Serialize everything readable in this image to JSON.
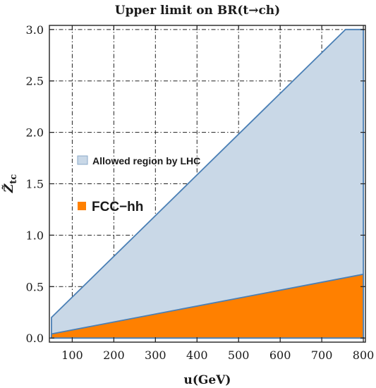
{
  "chart_data": {
    "type": "area",
    "title": "Upper limit on BR(t→ch)",
    "xlabel": "u(GeV)",
    "ylabel_main": "Z̃",
    "ylabel_sub": "tc",
    "xlim": [
      45,
      805
    ],
    "ylim": [
      -0.04,
      3.04
    ],
    "x_ticks": [
      "100",
      "200",
      "300",
      "400",
      "500",
      "600",
      "700",
      "800"
    ],
    "x_tick_values": [
      100,
      200,
      300,
      400,
      500,
      600,
      700,
      800
    ],
    "y_ticks": [
      "0.0",
      "0.5",
      "1.0",
      "1.5",
      "2.0",
      "2.5",
      "3.0"
    ],
    "y_tick_values": [
      0.0,
      0.5,
      1.0,
      1.5,
      2.0,
      2.5,
      3.0
    ],
    "grid": "dashed",
    "legend_position": "left",
    "series": [
      {
        "name": "Allowed region by LHC",
        "color": "#c9d8e7",
        "edge_color": "#4a7fb5",
        "polygon": [
          [
            50,
            0.0
          ],
          [
            50,
            0.2
          ],
          [
            757,
            3.0
          ],
          [
            800,
            3.0
          ],
          [
            800,
            0.0
          ]
        ]
      },
      {
        "name": "FCC−hh",
        "color": "#ff8000",
        "edge_color": "#4a7fb5",
        "polygon": [
          [
            50,
            0.0
          ],
          [
            50,
            0.04
          ],
          [
            800,
            0.62
          ],
          [
            800,
            0.0
          ]
        ]
      }
    ]
  }
}
